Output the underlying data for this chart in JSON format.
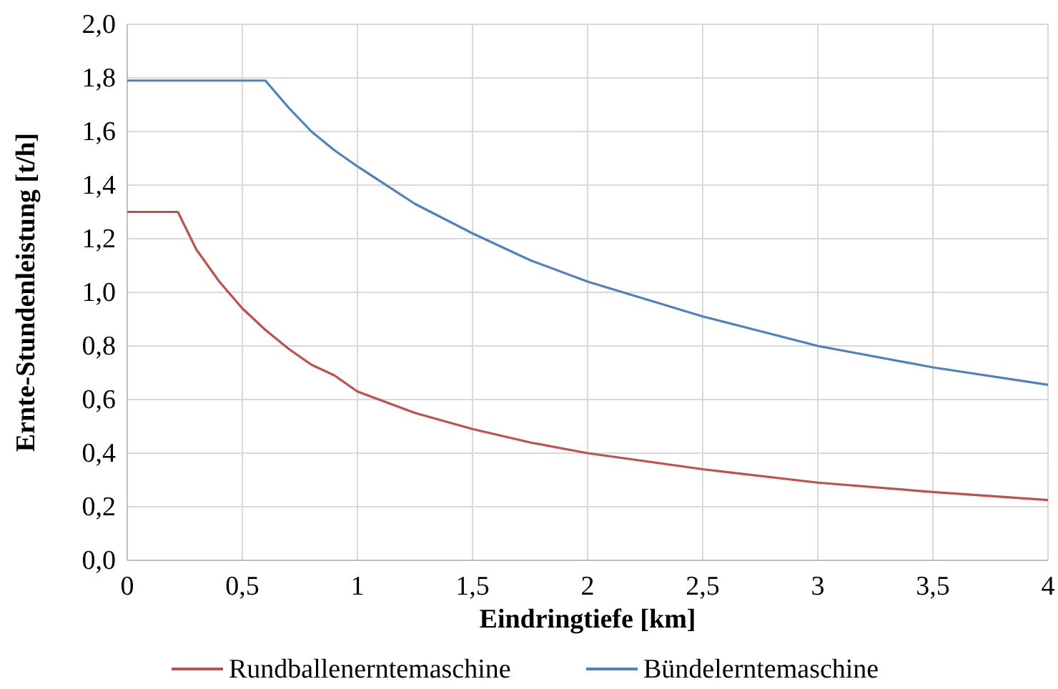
{
  "chart_data": {
    "type": "line",
    "xlabel": "Eindringtiefe [km]",
    "ylabel": "Ernte-Stundenleistung [t/h]",
    "xlim": [
      0,
      4
    ],
    "xticks": [
      0,
      {
        "value": 0.5,
        "label": "0,5"
      },
      1,
      {
        "value": 1.5,
        "label": "1,5"
      },
      2,
      {
        "value": 2.5,
        "label": "2,5"
      },
      3,
      {
        "value": 3.5,
        "label": "3,5"
      },
      4
    ],
    "ylim": [
      0,
      2
    ],
    "yticks": [
      {
        "value": 0,
        "label": "0,0"
      },
      {
        "value": 0.2,
        "label": "0,2"
      },
      {
        "value": 0.4,
        "label": "0,4"
      },
      {
        "value": 0.6,
        "label": "0,6"
      },
      {
        "value": 0.8,
        "label": "0,8"
      },
      {
        "value": 1,
        "label": "1,0"
      },
      {
        "value": 1.2,
        "label": "1,2"
      },
      {
        "value": 1.4,
        "label": "1,4"
      },
      {
        "value": 1.6,
        "label": "1,6"
      },
      {
        "value": 1.8,
        "label": "1,8"
      },
      {
        "value": 2,
        "label": "2,0"
      }
    ],
    "grid": true,
    "legend": "bottom",
    "marker": "none",
    "line_style": "solid",
    "series": [
      {
        "name": "Rundballenerntemaschine",
        "color": "#c0504d",
        "x": [
          0,
          0.22,
          0.3,
          0.4,
          0.5,
          0.6,
          0.7,
          0.8,
          0.9,
          1,
          1.25,
          1.5,
          1.75,
          2,
          2.5,
          3,
          3.5,
          4
        ],
        "values": [
          1.3,
          1.3,
          1.16,
          1.04,
          0.94,
          0.86,
          0.79,
          0.73,
          0.69,
          0.63,
          0.55,
          0.49,
          0.44,
          0.4,
          0.34,
          0.29,
          0.255,
          0.225
        ]
      },
      {
        "name": "Bündelerntemaschine",
        "color": "#4f81bd",
        "x": [
          0,
          0.6,
          0.7,
          0.8,
          0.9,
          1,
          1.25,
          1.5,
          1.75,
          2,
          2.5,
          3,
          3.5,
          4
        ],
        "values": [
          1.79,
          1.79,
          1.69,
          1.6,
          1.53,
          1.47,
          1.33,
          1.22,
          1.12,
          1.04,
          0.91,
          0.8,
          0.72,
          0.655
        ]
      }
    ]
  }
}
